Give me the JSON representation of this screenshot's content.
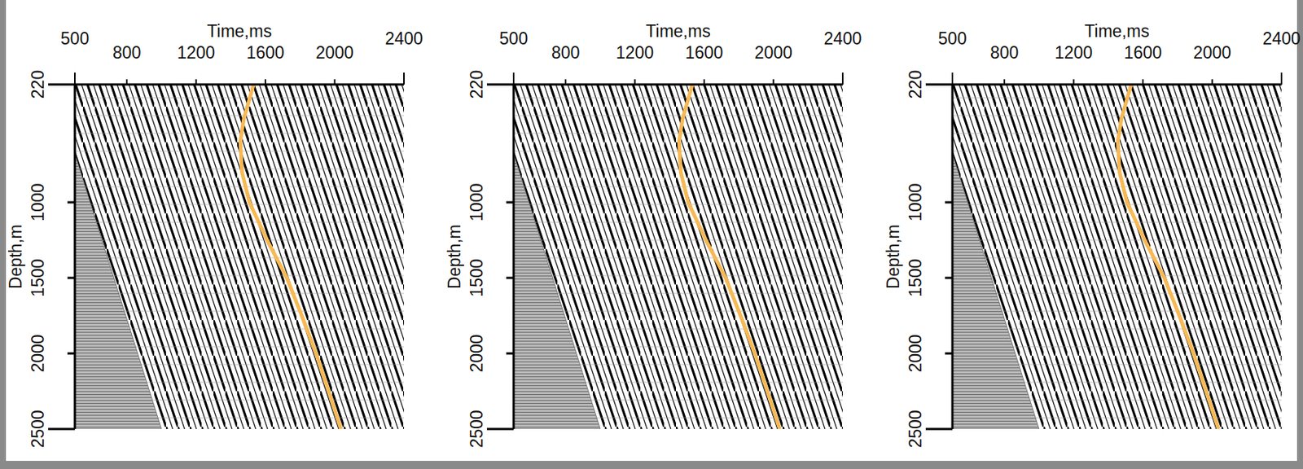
{
  "chart_data": [
    {
      "type": "line",
      "x_label": "Time,ms",
      "y_label": "Depth,m",
      "xlim": [
        500,
        2400
      ],
      "ylim": [
        220,
        2500
      ],
      "xticks": [
        500,
        800,
        1200,
        1600,
        2000,
        2400
      ],
      "yticks": [
        220,
        1000,
        1500,
        2000,
        2500
      ],
      "grid": false,
      "series": [
        {
          "color": "#f7b955",
          "x": [
            1532,
            1475,
            1455,
            1465,
            1508,
            1610,
            1724,
            1810,
            1892,
            1965,
            2036
          ],
          "values": [
            220,
            450,
            600,
            800,
            1000,
            1250,
            1500,
            1750,
            2000,
            2250,
            2500
          ]
        },
        {
          "type": "area",
          "color": "#b8b8b8",
          "x": [
            500,
            1000
          ],
          "values": [
            680,
            2500
          ]
        }
      ]
    },
    {
      "type": "line",
      "x_label": "Time,ms",
      "y_label": "Depth,m",
      "xlim": [
        500,
        2400
      ],
      "ylim": [
        220,
        2500
      ],
      "xticks": [
        500,
        800,
        1200,
        1600,
        2000,
        2400
      ],
      "yticks": [
        220,
        1000,
        1500,
        2000,
        2500
      ],
      "grid": false,
      "series": [
        {
          "color": "#f7b955",
          "x": [
            1532,
            1475,
            1455,
            1465,
            1508,
            1610,
            1724,
            1810,
            1892,
            1965,
            2036
          ],
          "values": [
            220,
            450,
            600,
            800,
            1000,
            1250,
            1500,
            1750,
            2000,
            2250,
            2500
          ]
        },
        {
          "type": "area",
          "color": "#b8b8b8",
          "x": [
            500,
            1000
          ],
          "values": [
            680,
            2500
          ]
        }
      ]
    },
    {
      "type": "line",
      "x_label": "Time,ms",
      "y_label": "Depth,m",
      "xlim": [
        500,
        2400
      ],
      "ylim": [
        220,
        2500
      ],
      "xticks": [
        500,
        800,
        1200,
        1600,
        2000,
        2400
      ],
      "yticks": [
        220,
        1000,
        1500,
        2000,
        2500
      ],
      "grid": false,
      "series": [
        {
          "color": "#f7b955",
          "x": [
            1532,
            1475,
            1455,
            1465,
            1508,
            1610,
            1724,
            1810,
            1892,
            1965,
            2036
          ],
          "values": [
            220,
            450,
            600,
            800,
            1000,
            1250,
            1500,
            1750,
            2000,
            2250,
            2500
          ]
        },
        {
          "type": "area",
          "color": "#b8b8b8",
          "x": [
            500,
            1000
          ],
          "values": [
            680,
            2500
          ]
        }
      ]
    }
  ]
}
